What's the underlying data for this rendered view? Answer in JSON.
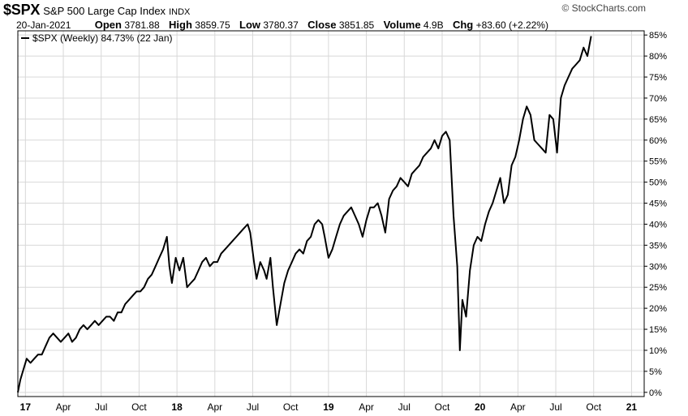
{
  "header": {
    "symbol": "$SPX",
    "name": "S&P 500 Large Cap Index",
    "exchange": "INDX",
    "brand": "© StockCharts.com",
    "date": "20-Jan-2021",
    "open_label": "Open",
    "open": "3781.88",
    "high_label": "High",
    "high": "3859.75",
    "low_label": "Low",
    "low": "3780.37",
    "close_label": "Close",
    "close": "3851.85",
    "volume_label": "Volume",
    "volume": "4.9B",
    "chg_label": "Chg",
    "chg": "+83.60 (+2.22%)"
  },
  "colors": {
    "line": "#000000",
    "grid": "#d8d8d8",
    "axis": "#000000"
  },
  "chart_data": {
    "type": "line",
    "legend": {
      "text": "$SPX (Weekly) 84.73% (22 Jan)",
      "position": "top-left"
    },
    "grid": true,
    "ylim": [
      -1,
      86
    ],
    "y_ticks": [
      0,
      5,
      10,
      15,
      20,
      25,
      30,
      35,
      40,
      45,
      50,
      55,
      60,
      65,
      70,
      75,
      80,
      85
    ],
    "y_tick_suffix": "%",
    "y_axis_side": "right",
    "x_ticks": [
      {
        "label": "17",
        "t": 0.6,
        "bold": true
      },
      {
        "label": "Apr",
        "t": 3.6
      },
      {
        "label": "Jul",
        "t": 6.6
      },
      {
        "label": "Oct",
        "t": 9.6
      },
      {
        "label": "18",
        "t": 12.6,
        "bold": true
      },
      {
        "label": "Apr",
        "t": 15.6
      },
      {
        "label": "Jul",
        "t": 18.6
      },
      {
        "label": "Oct",
        "t": 21.6
      },
      {
        "label": "19",
        "t": 24.6,
        "bold": true
      },
      {
        "label": "Apr",
        "t": 27.6
      },
      {
        "label": "Jul",
        "t": 30.6
      },
      {
        "label": "Oct",
        "t": 33.6
      },
      {
        "label": "20",
        "t": 36.6,
        "bold": true
      },
      {
        "label": "Apr",
        "t": 39.6
      },
      {
        "label": "Jul",
        "t": 42.6
      },
      {
        "label": "Oct",
        "t": 45.6
      },
      {
        "label": "21",
        "t": 48.6,
        "bold": true
      }
    ],
    "xlim": [
      0,
      49.6
    ],
    "series": [
      {
        "points": [
          [
            0.0,
            0
          ],
          [
            0.2,
            3
          ],
          [
            0.4,
            5
          ],
          [
            0.7,
            8
          ],
          [
            1.0,
            7
          ],
          [
            1.3,
            8
          ],
          [
            1.6,
            9
          ],
          [
            1.9,
            9
          ],
          [
            2.2,
            11
          ],
          [
            2.5,
            13
          ],
          [
            2.8,
            14
          ],
          [
            3.1,
            13
          ],
          [
            3.4,
            12
          ],
          [
            3.7,
            13
          ],
          [
            4.0,
            14
          ],
          [
            4.3,
            12
          ],
          [
            4.6,
            13
          ],
          [
            4.9,
            15
          ],
          [
            5.2,
            16
          ],
          [
            5.5,
            15
          ],
          [
            5.8,
            16
          ],
          [
            6.1,
            17
          ],
          [
            6.4,
            16
          ],
          [
            6.7,
            17
          ],
          [
            7.0,
            18
          ],
          [
            7.3,
            18
          ],
          [
            7.6,
            17
          ],
          [
            7.9,
            19
          ],
          [
            8.2,
            19
          ],
          [
            8.5,
            21
          ],
          [
            8.8,
            22
          ],
          [
            9.1,
            23
          ],
          [
            9.4,
            24
          ],
          [
            9.7,
            24
          ],
          [
            10.0,
            25
          ],
          [
            10.3,
            27
          ],
          [
            10.6,
            28
          ],
          [
            10.9,
            30
          ],
          [
            11.2,
            32
          ],
          [
            11.5,
            34
          ],
          [
            11.8,
            37
          ],
          [
            12.0,
            30
          ],
          [
            12.2,
            26
          ],
          [
            12.5,
            32
          ],
          [
            12.8,
            29
          ],
          [
            13.1,
            32
          ],
          [
            13.4,
            25
          ],
          [
            13.7,
            26
          ],
          [
            14.0,
            27
          ],
          [
            14.3,
            29
          ],
          [
            14.6,
            31
          ],
          [
            14.9,
            32
          ],
          [
            15.2,
            30
          ],
          [
            15.5,
            31
          ],
          [
            15.8,
            31
          ],
          [
            16.1,
            33
          ],
          [
            16.4,
            34
          ],
          [
            16.7,
            35
          ],
          [
            17.0,
            36
          ],
          [
            17.3,
            37
          ],
          [
            17.6,
            38
          ],
          [
            17.9,
            39
          ],
          [
            18.2,
            40
          ],
          [
            18.4,
            38
          ],
          [
            18.7,
            31
          ],
          [
            18.9,
            27
          ],
          [
            19.2,
            31
          ],
          [
            19.5,
            29
          ],
          [
            19.7,
            27
          ],
          [
            20.0,
            32
          ],
          [
            20.2,
            25
          ],
          [
            20.5,
            16
          ],
          [
            20.8,
            21
          ],
          [
            21.1,
            26
          ],
          [
            21.4,
            29
          ],
          [
            21.7,
            31
          ],
          [
            22.0,
            33
          ],
          [
            22.3,
            34
          ],
          [
            22.6,
            33
          ],
          [
            22.9,
            36
          ],
          [
            23.2,
            37
          ],
          [
            23.5,
            40
          ],
          [
            23.8,
            41
          ],
          [
            24.1,
            40
          ],
          [
            24.3,
            37
          ],
          [
            24.6,
            32
          ],
          [
            24.9,
            34
          ],
          [
            25.2,
            37
          ],
          [
            25.5,
            40
          ],
          [
            25.8,
            42
          ],
          [
            26.1,
            43
          ],
          [
            26.4,
            44
          ],
          [
            26.7,
            42
          ],
          [
            27.0,
            40
          ],
          [
            27.3,
            37
          ],
          [
            27.6,
            41
          ],
          [
            27.9,
            44
          ],
          [
            28.2,
            44
          ],
          [
            28.5,
            45
          ],
          [
            28.8,
            42
          ],
          [
            29.1,
            38
          ],
          [
            29.4,
            46
          ],
          [
            29.7,
            48
          ],
          [
            30.0,
            49
          ],
          [
            30.3,
            51
          ],
          [
            30.6,
            50
          ],
          [
            30.9,
            49
          ],
          [
            31.2,
            52
          ],
          [
            31.5,
            53
          ],
          [
            31.8,
            54
          ],
          [
            32.1,
            56
          ],
          [
            32.4,
            57
          ],
          [
            32.7,
            58
          ],
          [
            33.0,
            60
          ],
          [
            33.3,
            58
          ],
          [
            33.6,
            61
          ],
          [
            33.9,
            62
          ],
          [
            34.2,
            60
          ],
          [
            34.5,
            42
          ],
          [
            34.8,
            30
          ],
          [
            35.0,
            10
          ],
          [
            35.2,
            22
          ],
          [
            35.5,
            18
          ],
          [
            35.8,
            29
          ],
          [
            36.1,
            35
          ],
          [
            36.4,
            37
          ],
          [
            36.7,
            36
          ],
          [
            37.0,
            40
          ],
          [
            37.3,
            43
          ],
          [
            37.6,
            45
          ],
          [
            37.9,
            48
          ],
          [
            38.2,
            51
          ],
          [
            38.5,
            45
          ],
          [
            38.8,
            47
          ],
          [
            39.1,
            54
          ],
          [
            39.4,
            56
          ],
          [
            39.7,
            60
          ],
          [
            40.0,
            65
          ],
          [
            40.3,
            68
          ],
          [
            40.6,
            66
          ],
          [
            40.9,
            60
          ],
          [
            41.2,
            59
          ],
          [
            41.5,
            58
          ],
          [
            41.8,
            57
          ],
          [
            42.1,
            66
          ],
          [
            42.4,
            65
          ],
          [
            42.7,
            57
          ],
          [
            43.0,
            70
          ],
          [
            43.3,
            73
          ],
          [
            43.6,
            75
          ],
          [
            43.9,
            77
          ],
          [
            44.2,
            78
          ],
          [
            44.5,
            79
          ],
          [
            44.8,
            82
          ],
          [
            45.1,
            80
          ],
          [
            45.4,
            84.73
          ]
        ]
      }
    ]
  }
}
